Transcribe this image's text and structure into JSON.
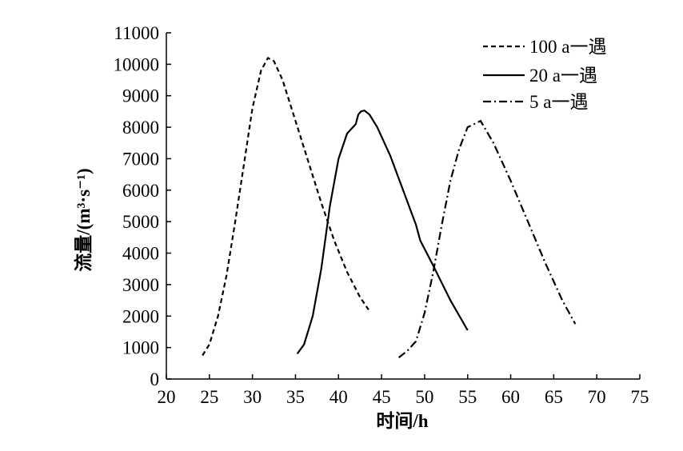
{
  "chart_data": {
    "type": "line",
    "xlabel": "时间/h",
    "ylabel": "流量/(m³·s⁻¹)",
    "xlim": [
      20,
      75
    ],
    "ylim": [
      0,
      11000
    ],
    "xticks": [
      20,
      25,
      30,
      35,
      40,
      45,
      50,
      55,
      60,
      65,
      70,
      75
    ],
    "yticks": [
      0,
      1000,
      2000,
      3000,
      4000,
      5000,
      6000,
      7000,
      8000,
      9000,
      10000,
      11000
    ],
    "grid": false,
    "legend_position": "top-right",
    "series": [
      {
        "name": "100 a一遇",
        "dash": "dashed",
        "x": [
          24.2,
          25,
          26,
          27,
          28,
          29,
          30,
          31,
          31.8,
          32.5,
          33.5,
          35,
          36.5,
          38,
          39.5,
          41,
          42.5,
          43.5
        ],
        "y": [
          750,
          1100,
          2000,
          3300,
          5000,
          6800,
          8600,
          9800,
          10200,
          10100,
          9500,
          8200,
          6900,
          5600,
          4400,
          3400,
          2600,
          2200
        ]
      },
      {
        "name": "20 a一遇",
        "dash": "solid",
        "x": [
          35.2,
          36,
          37,
          38,
          39,
          40,
          41,
          42,
          42.3,
          42.6,
          43,
          43.6,
          44.5,
          46,
          47.5,
          49,
          49.5,
          51,
          53,
          55
        ],
        "y": [
          800,
          1100,
          2000,
          3500,
          5500,
          7000,
          7800,
          8100,
          8400,
          8500,
          8530,
          8400,
          8000,
          7100,
          6000,
          4900,
          4400,
          3600,
          2500,
          1550
        ]
      },
      {
        "name": "5 a一遇",
        "dash": "dashdot",
        "x": [
          47,
          48,
          49,
          50,
          51,
          52,
          53,
          54,
          55,
          56.5,
          58,
          60,
          62,
          64,
          66,
          67.5
        ],
        "y": [
          680,
          900,
          1200,
          2100,
          3400,
          4900,
          6300,
          7300,
          8000,
          8200,
          7500,
          6300,
          5000,
          3700,
          2500,
          1750
        ]
      }
    ]
  }
}
